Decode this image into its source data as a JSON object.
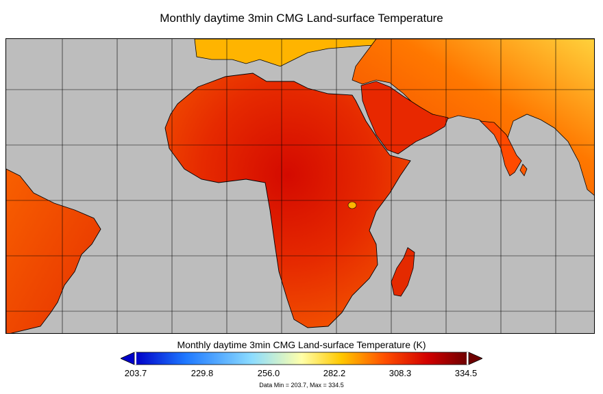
{
  "title": "Monthly daytime 3min CMG Land-surface Temperature",
  "colorbar": {
    "title": "Monthly daytime 3min CMG Land-surface Temperature (K)",
    "ticks": [
      "203.7",
      "229.8",
      "256.0",
      "282.2",
      "308.3",
      "334.5"
    ],
    "min": 203.7,
    "max": 334.5,
    "stops": [
      "#0000c8",
      "#1e78ff",
      "#8cdcff",
      "#ffffaa",
      "#ffc800",
      "#ff5000",
      "#d20000",
      "#6e0000"
    ]
  },
  "footnote": "Data Min = 203.7, Max = 334.5",
  "map": {
    "ocean_color": "#bdbdbd",
    "grid_color": "#000000",
    "regions": [
      "Africa",
      "South America",
      "Europe",
      "Arabian Peninsula",
      "Indian Subcontinent",
      "Madagascar"
    ]
  }
}
